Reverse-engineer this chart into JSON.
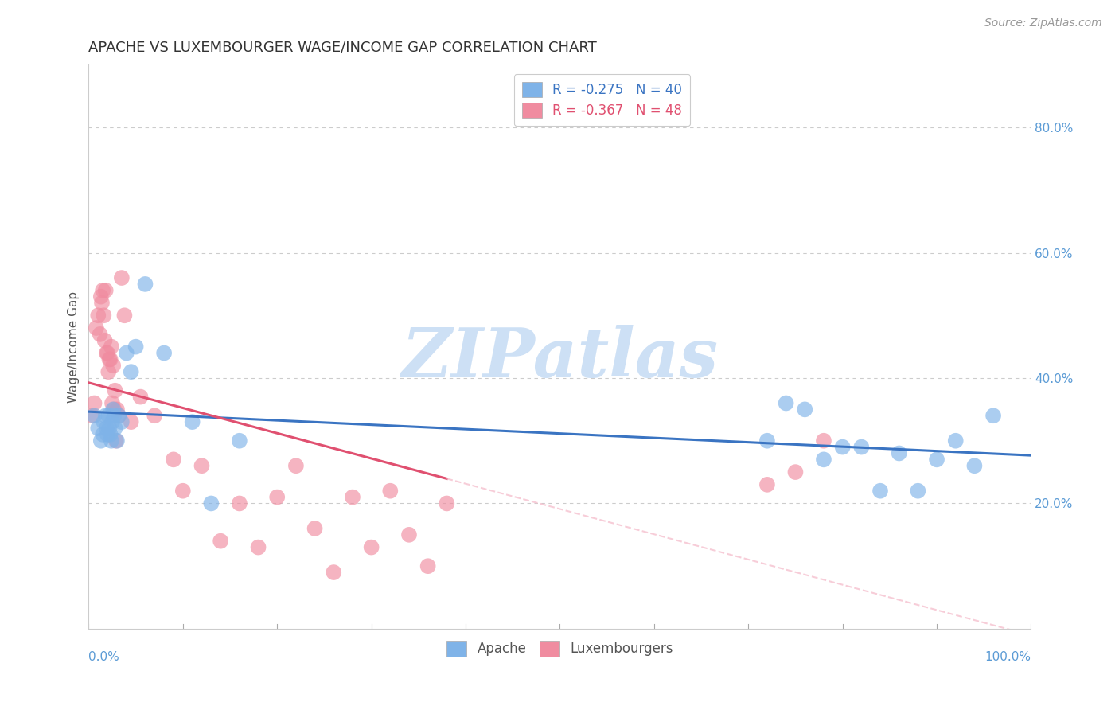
{
  "title": "APACHE VS LUXEMBOURGER WAGE/INCOME GAP CORRELATION CHART",
  "source": "Source: ZipAtlas.com",
  "ylabel": "Wage/Income Gap",
  "watermark": "ZIPatlas",
  "apache_color": "#7fb3e8",
  "luxembourger_color": "#f08ca0",
  "apache_line_color": "#3a74c2",
  "luxembourger_line_color": "#e05070",
  "luxembourger_dashed_color": "#f4b8c8",
  "background_color": "#ffffff",
  "grid_color": "#cccccc",
  "ytick_color": "#5b9bd5",
  "xtick_color": "#5b9bd5",
  "title_fontsize": 13,
  "axis_label_fontsize": 11,
  "tick_fontsize": 11,
  "watermark_fontsize": 62,
  "watermark_color": "#cde0f5",
  "source_fontsize": 10,
  "ylim": [
    0.0,
    0.9
  ],
  "xlim": [
    0.0,
    1.0
  ],
  "yticks": [
    0.2,
    0.4,
    0.6,
    0.8
  ],
  "ytick_labels": [
    "20.0%",
    "40.0%",
    "60.0%",
    "80.0%"
  ],
  "xtick_labels_bottom": [
    "0.0%",
    "100.0%"
  ],
  "apache_x": [
    0.006,
    0.01,
    0.013,
    0.015,
    0.016,
    0.018,
    0.019,
    0.02,
    0.021,
    0.022,
    0.023,
    0.024,
    0.025,
    0.026,
    0.027,
    0.028,
    0.03,
    0.032,
    0.035,
    0.04,
    0.045,
    0.05,
    0.06,
    0.08,
    0.11,
    0.13,
    0.16,
    0.72,
    0.74,
    0.76,
    0.78,
    0.8,
    0.82,
    0.84,
    0.86,
    0.88,
    0.9,
    0.92,
    0.94,
    0.96
  ],
  "apache_y": [
    0.34,
    0.32,
    0.3,
    0.31,
    0.33,
    0.34,
    0.32,
    0.31,
    0.34,
    0.32,
    0.31,
    0.3,
    0.33,
    0.35,
    0.34,
    0.32,
    0.3,
    0.34,
    0.33,
    0.44,
    0.41,
    0.45,
    0.55,
    0.44,
    0.33,
    0.2,
    0.3,
    0.3,
    0.36,
    0.35,
    0.27,
    0.29,
    0.29,
    0.22,
    0.28,
    0.22,
    0.27,
    0.3,
    0.26,
    0.34
  ],
  "luxembourger_x": [
    0.004,
    0.006,
    0.008,
    0.01,
    0.012,
    0.013,
    0.014,
    0.015,
    0.016,
    0.017,
    0.018,
    0.019,
    0.02,
    0.021,
    0.022,
    0.023,
    0.024,
    0.025,
    0.026,
    0.027,
    0.028,
    0.029,
    0.03,
    0.032,
    0.035,
    0.038,
    0.045,
    0.055,
    0.07,
    0.09,
    0.1,
    0.12,
    0.14,
    0.16,
    0.18,
    0.2,
    0.22,
    0.24,
    0.26,
    0.28,
    0.3,
    0.32,
    0.34,
    0.36,
    0.38,
    0.72,
    0.75,
    0.78
  ],
  "luxembourger_y": [
    0.34,
    0.36,
    0.48,
    0.5,
    0.47,
    0.53,
    0.52,
    0.54,
    0.5,
    0.46,
    0.54,
    0.44,
    0.44,
    0.41,
    0.43,
    0.43,
    0.45,
    0.36,
    0.42,
    0.35,
    0.38,
    0.3,
    0.35,
    0.34,
    0.56,
    0.5,
    0.33,
    0.37,
    0.34,
    0.27,
    0.22,
    0.26,
    0.14,
    0.2,
    0.13,
    0.21,
    0.26,
    0.16,
    0.09,
    0.21,
    0.13,
    0.22,
    0.15,
    0.1,
    0.2,
    0.23,
    0.25,
    0.3
  ]
}
